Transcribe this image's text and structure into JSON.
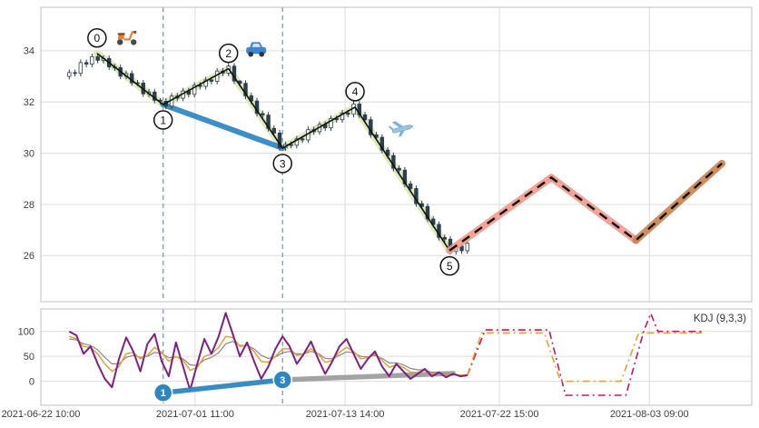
{
  "indicator_legend": "KDJ (9,3,3)",
  "chart_data": [
    {
      "type": "candlestick",
      "panel": "price",
      "xlim": [
        0,
        100
      ],
      "ylim": [
        24.2,
        35.7
      ],
      "y_ticks": [
        26,
        28,
        30,
        32,
        34
      ],
      "x_ticks": [
        {
          "u": 0,
          "label": "2021-06-22 10:00"
        },
        {
          "u": 21.7,
          "label": "2021-07-01 11:00"
        },
        {
          "u": 42.8,
          "label": "2021-07-13 14:00"
        },
        {
          "u": 64.5,
          "label": "2021-07-22 15:00"
        },
        {
          "u": 85.6,
          "label": "2021-08-03 09:00"
        }
      ],
      "grid": true,
      "vlines": [
        17.2,
        34.0
      ],
      "candles": [
        [
          4.0,
          33.0,
          33.27,
          32.88,
          33.15
        ],
        [
          4.8,
          33.15,
          33.27,
          33.0,
          33.12
        ],
        [
          5.6,
          33.12,
          33.66,
          33.0,
          33.54
        ],
        [
          6.4,
          33.54,
          33.66,
          33.36,
          33.48
        ],
        [
          7.2,
          33.48,
          33.89,
          33.36,
          33.77
        ],
        [
          8.0,
          33.77,
          33.89,
          33.51,
          33.63
        ],
        [
          8.8,
          33.63,
          33.82,
          33.51,
          33.7
        ],
        [
          9.6,
          33.7,
          33.82,
          33.25,
          33.37
        ],
        [
          10.4,
          33.37,
          33.49,
          33.22,
          33.34
        ],
        [
          11.2,
          33.34,
          33.46,
          32.89,
          33.01
        ],
        [
          12.0,
          33.01,
          33.23,
          32.89,
          33.11
        ],
        [
          12.8,
          33.11,
          33.23,
          32.63,
          32.75
        ],
        [
          13.6,
          32.75,
          32.86,
          32.62,
          32.74
        ],
        [
          14.4,
          32.74,
          32.86,
          32.2,
          32.32
        ],
        [
          15.2,
          32.32,
          32.51,
          32.2,
          32.39
        ],
        [
          16.0,
          32.39,
          32.51,
          31.95,
          32.07
        ],
        [
          16.8,
          32.07,
          32.15,
          31.91,
          32.03
        ],
        [
          17.6,
          32.03,
          32.15,
          31.72,
          31.84
        ],
        [
          18.4,
          31.84,
          32.35,
          31.72,
          32.23
        ],
        [
          19.2,
          32.23,
          32.35,
          32.03,
          32.15
        ],
        [
          20.0,
          32.15,
          32.55,
          32.03,
          32.43
        ],
        [
          20.8,
          32.43,
          32.55,
          32.18,
          32.3
        ],
        [
          21.6,
          32.3,
          32.77,
          32.18,
          32.65
        ],
        [
          22.4,
          32.65,
          32.77,
          32.49,
          32.61
        ],
        [
          23.2,
          32.61,
          32.98,
          32.49,
          32.86
        ],
        [
          24.0,
          32.86,
          32.98,
          32.69,
          32.81
        ],
        [
          24.8,
          32.81,
          33.33,
          32.69,
          33.21
        ],
        [
          25.6,
          33.21,
          33.33,
          33.01,
          33.13
        ],
        [
          26.4,
          33.13,
          33.52,
          33.01,
          33.4
        ],
        [
          27.2,
          33.4,
          33.52,
          32.7,
          32.82
        ],
        [
          28.0,
          32.82,
          32.85,
          32.61,
          32.73
        ],
        [
          28.8,
          32.73,
          32.85,
          32.12,
          32.24
        ],
        [
          29.6,
          32.24,
          32.36,
          31.92,
          32.04
        ],
        [
          30.4,
          32.04,
          32.16,
          31.43,
          31.55
        ],
        [
          31.2,
          31.55,
          31.67,
          31.37,
          31.49
        ],
        [
          32.0,
          31.49,
          31.61,
          30.85,
          30.97
        ],
        [
          32.8,
          30.97,
          31.09,
          30.67,
          30.79
        ],
        [
          33.6,
          30.79,
          30.91,
          30.09,
          30.21
        ],
        [
          34.4,
          30.21,
          30.46,
          30.09,
          30.34
        ],
        [
          35.2,
          30.34,
          30.46,
          30.19,
          30.31
        ],
        [
          36.0,
          30.31,
          30.68,
          30.19,
          30.56
        ],
        [
          36.8,
          30.56,
          30.68,
          30.4,
          30.52
        ],
        [
          37.6,
          30.52,
          31.04,
          30.4,
          30.92
        ],
        [
          38.4,
          30.92,
          31.04,
          30.72,
          30.84
        ],
        [
          39.2,
          30.84,
          31.24,
          30.72,
          31.12
        ],
        [
          40.0,
          31.12,
          31.24,
          30.87,
          30.99
        ],
        [
          40.8,
          30.99,
          31.47,
          30.87,
          31.35
        ],
        [
          41.6,
          31.35,
          31.47,
          31.19,
          31.31
        ],
        [
          42.4,
          31.31,
          31.69,
          31.19,
          31.57
        ],
        [
          43.2,
          31.57,
          31.69,
          31.4,
          31.52
        ],
        [
          44.0,
          31.52,
          32.04,
          31.4,
          31.92
        ],
        [
          44.8,
          31.92,
          32.04,
          31.38,
          31.5
        ],
        [
          45.6,
          31.5,
          31.62,
          31.19,
          31.31
        ],
        [
          46.4,
          31.31,
          31.43,
          30.6,
          30.72
        ],
        [
          47.2,
          30.72,
          30.84,
          30.5,
          30.62
        ],
        [
          48.0,
          30.62,
          30.74,
          30.0,
          30.12
        ],
        [
          48.8,
          30.12,
          30.24,
          29.79,
          29.91
        ],
        [
          49.6,
          29.91,
          30.03,
          29.29,
          29.41
        ],
        [
          50.4,
          29.41,
          29.53,
          29.22,
          29.34
        ],
        [
          51.2,
          29.34,
          29.46,
          28.68,
          28.8
        ],
        [
          52.0,
          28.8,
          28.92,
          28.5,
          28.62
        ],
        [
          52.8,
          28.62,
          28.74,
          27.91,
          28.03
        ],
        [
          53.6,
          28.03,
          28.15,
          27.8,
          27.92
        ],
        [
          54.4,
          27.92,
          28.04,
          27.31,
          27.43
        ],
        [
          55.2,
          27.43,
          27.55,
          27.1,
          27.22
        ],
        [
          56.0,
          27.22,
          27.34,
          26.59,
          26.71
        ],
        [
          56.8,
          26.71,
          26.83,
          26.52,
          26.64
        ],
        [
          57.6,
          26.64,
          26.76,
          26.04,
          26.16
        ],
        [
          58.4,
          26.16,
          26.49,
          26.04,
          26.37
        ],
        [
          59.2,
          26.37,
          26.49,
          26.07,
          26.19
        ],
        [
          60.0,
          26.19,
          26.6,
          26.07,
          26.48
        ]
      ],
      "zigzag_points": [
        {
          "n": 0,
          "u": 7.9,
          "price": 33.9,
          "side": "above"
        },
        {
          "n": 1,
          "u": 17.2,
          "price": 31.9,
          "side": "below"
        },
        {
          "n": 2,
          "u": 26.4,
          "price": 33.3,
          "side": "above"
        },
        {
          "n": 3,
          "u": 34.0,
          "price": 30.2,
          "side": "below"
        },
        {
          "n": 4,
          "u": 44.2,
          "price": 31.8,
          "side": "above"
        },
        {
          "n": 5,
          "u": 57.5,
          "price": 26.2,
          "side": "below"
        }
      ],
      "zigzag_shadow_color": "#dce8b8",
      "zigzag_line_color": "#111111",
      "trade_segment": {
        "from_point": 1,
        "to_point": 3,
        "color": "#2e86c1"
      },
      "projection": {
        "points": [
          [
            57.5,
            26.2
          ],
          [
            71.8,
            29.05
          ],
          [
            83.7,
            26.6
          ],
          [
            95.8,
            29.6
          ]
        ],
        "segment_shadow_colors": [
          "#f29a8c",
          "#f29a8c",
          "#c8824f"
        ],
        "line_style": "dashed",
        "line_color": "#111111"
      },
      "icons": [
        {
          "name": "scooter-icon",
          "u": 12.1,
          "price": 34.55
        },
        {
          "name": "car-icon",
          "u": 30.3,
          "price": 34.0
        },
        {
          "name": "plane-icon",
          "u": 50.8,
          "price": 30.95
        }
      ]
    },
    {
      "type": "line",
      "panel": "indicator",
      "legend": "KDJ (9,3,3)",
      "ylim": [
        -48,
        145
      ],
      "y_ticks": [
        0,
        50,
        100
      ],
      "vlines": [
        17.2,
        34.0
      ],
      "series": [
        {
          "name": "J",
          "color": "#7d2181",
          "width": 2.0,
          "u_start": 4,
          "u_step": 1,
          "values": [
            100,
            92,
            55,
            70,
            35,
            5,
            -12,
            45,
            88,
            60,
            20,
            75,
            95,
            40,
            10,
            78,
            30,
            -18,
            35,
            85,
            55,
            90,
            137,
            95,
            50,
            78,
            40,
            5,
            30,
            65,
            90,
            70,
            35,
            55,
            80,
            45,
            15,
            40,
            70,
            85,
            55,
            25,
            45,
            60,
            30,
            10,
            35,
            20,
            5,
            15,
            25,
            10,
            18,
            8,
            15,
            10,
            12
          ]
        },
        {
          "name": "K",
          "color": "#e3a13a",
          "width": 1.5,
          "u_start": 4,
          "u_step": 1,
          "values": [
            90,
            85,
            70,
            68,
            55,
            35,
            20,
            30,
            55,
            58,
            45,
            52,
            68,
            58,
            40,
            50,
            42,
            22,
            28,
            50,
            55,
            68,
            90,
            88,
            70,
            72,
            60,
            40,
            38,
            50,
            65,
            65,
            52,
            55,
            65,
            55,
            38,
            42,
            58,
            68,
            60,
            45,
            48,
            55,
            42,
            28,
            33,
            28,
            18,
            18,
            22,
            15,
            17,
            12,
            14,
            12,
            13
          ]
        },
        {
          "name": "D",
          "color": "#8a8a8a",
          "width": 1.2,
          "u_start": 4,
          "u_step": 1,
          "values": [
            85,
            83,
            75,
            72,
            63,
            48,
            35,
            35,
            48,
            52,
            48,
            50,
            58,
            56,
            47,
            49,
            45,
            33,
            32,
            43,
            48,
            57,
            75,
            80,
            72,
            72,
            65,
            52,
            46,
            49,
            57,
            60,
            55,
            55,
            60,
            56,
            46,
            45,
            52,
            59,
            57,
            50,
            49,
            52,
            46,
            37,
            37,
            33,
            26,
            23,
            23,
            18,
            18,
            14,
            14,
            12,
            12
          ]
        }
      ],
      "projection_series": [
        {
          "name": "J-forecast",
          "color": "#c2185b",
          "u": [
            60,
            62.5,
            71.5,
            73.8,
            82.3,
            84.8,
            85.8,
            86.8,
            93
          ],
          "values": [
            12,
            103,
            103,
            -28,
            -28,
            100,
            136,
            100,
            100
          ]
        },
        {
          "name": "K-forecast",
          "color": "#e3a13a",
          "u": [
            60,
            62,
            70.8,
            73.1,
            81.6,
            84.1,
            93
          ],
          "values": [
            13,
            97,
            97,
            0,
            0,
            97,
            97
          ]
        }
      ],
      "markers": [
        {
          "n": "1",
          "u": 17.2,
          "value": -23,
          "color": "#2e86c1"
        },
        {
          "n": "3",
          "u": 34.0,
          "value": 3,
          "color": "#2e86c1"
        }
      ],
      "trade_segment": {
        "points": [
          [
            17.2,
            -23
          ],
          [
            34.0,
            3
          ]
        ],
        "color": "#2e86c1"
      },
      "gray_segment": {
        "points": [
          [
            34.0,
            3
          ],
          [
            58.0,
            16
          ]
        ],
        "color": "#9a9a9a"
      }
    }
  ]
}
